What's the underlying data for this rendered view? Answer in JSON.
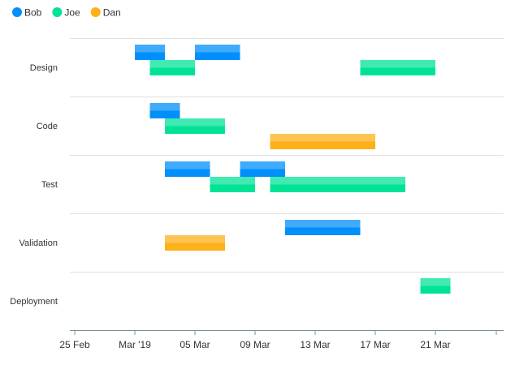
{
  "chart_data": {
    "type": "bar",
    "subtype": "timeline",
    "legend": {
      "position": "top-left",
      "items": [
        {
          "name": "Bob",
          "color": "#008ffb"
        },
        {
          "name": "Joe",
          "color": "#00e396"
        },
        {
          "name": "Dan",
          "color": "#feb019"
        }
      ]
    },
    "categories": [
      "Design",
      "Code",
      "Test",
      "Validation",
      "Deployment"
    ],
    "x_axis": {
      "type": "datetime",
      "min": "2019-02-25",
      "max": "2019-03-25",
      "tick_labels": [
        "25 Feb",
        "Mar '19",
        "05 Mar",
        "09 Mar",
        "13 Mar",
        "17 Mar",
        "21 Mar"
      ],
      "tick_dates": [
        "2019-02-25",
        "2019-03-01",
        "2019-03-05",
        "2019-03-09",
        "2019-03-13",
        "2019-03-17",
        "2019-03-21"
      ]
    },
    "grid": "horizontal",
    "series": [
      {
        "name": "Bob",
        "color": "#008ffb",
        "tasks": [
          {
            "category": "Design",
            "start": "2019-03-01",
            "end": "2019-03-03"
          },
          {
            "category": "Design",
            "start": "2019-03-05",
            "end": "2019-03-08"
          },
          {
            "category": "Code",
            "start": "2019-03-02",
            "end": "2019-03-04"
          },
          {
            "category": "Test",
            "start": "2019-03-03",
            "end": "2019-03-06"
          },
          {
            "category": "Test",
            "start": "2019-03-08",
            "end": "2019-03-11"
          },
          {
            "category": "Validation",
            "start": "2019-03-11",
            "end": "2019-03-16"
          }
        ]
      },
      {
        "name": "Joe",
        "color": "#00e396",
        "tasks": [
          {
            "category": "Design",
            "start": "2019-03-02",
            "end": "2019-03-05"
          },
          {
            "category": "Design",
            "start": "2019-03-16",
            "end": "2019-03-21"
          },
          {
            "category": "Code",
            "start": "2019-03-03",
            "end": "2019-03-07"
          },
          {
            "category": "Test",
            "start": "2019-03-06",
            "end": "2019-03-09"
          },
          {
            "category": "Test",
            "start": "2019-03-10",
            "end": "2019-03-19"
          },
          {
            "category": "Deployment",
            "start": "2019-03-20",
            "end": "2019-03-22"
          }
        ]
      },
      {
        "name": "Dan",
        "color": "#feb019",
        "tasks": [
          {
            "category": "Code",
            "start": "2019-03-10",
            "end": "2019-03-17"
          },
          {
            "category": "Validation",
            "start": "2019-03-03",
            "end": "2019-03-07"
          }
        ]
      }
    ]
  }
}
